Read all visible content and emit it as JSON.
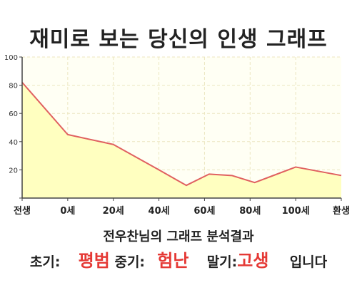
{
  "title": "재미로 보는 당신의 인생 그래프",
  "chart_data": {
    "type": "area",
    "x_categories": [
      "전생",
      "0세",
      "20세",
      "40세",
      "60세",
      "80세",
      "100세",
      "환생"
    ],
    "points": [
      {
        "x": 0,
        "y": 82
      },
      {
        "x": 1,
        "y": 45
      },
      {
        "x": 2,
        "y": 38
      },
      {
        "x": 3,
        "y": 20
      },
      {
        "x": 3.6,
        "y": 9
      },
      {
        "x": 4.1,
        "y": 17
      },
      {
        "x": 4.6,
        "y": 16
      },
      {
        "x": 5.1,
        "y": 11
      },
      {
        "x": 6.0,
        "y": 22
      },
      {
        "x": 7.0,
        "y": 16
      }
    ],
    "y_ticks": [
      20,
      40,
      60,
      80,
      100
    ],
    "ylim": [
      0,
      100
    ],
    "grid": true,
    "colors": {
      "line": "#e06060",
      "fill": "#ffffc0",
      "plot_background": "#fffff4",
      "grid": "#ece6c0"
    }
  },
  "analysis": "전우찬님의 그래프 분석결과",
  "verdict": {
    "early_label": "초기:",
    "early_value": "평범",
    "middle_label": "중기:",
    "middle_value": "험난",
    "late_label": "말기:",
    "late_value": "고생",
    "suffix": "입니다"
  },
  "accent_color": "#e53935"
}
